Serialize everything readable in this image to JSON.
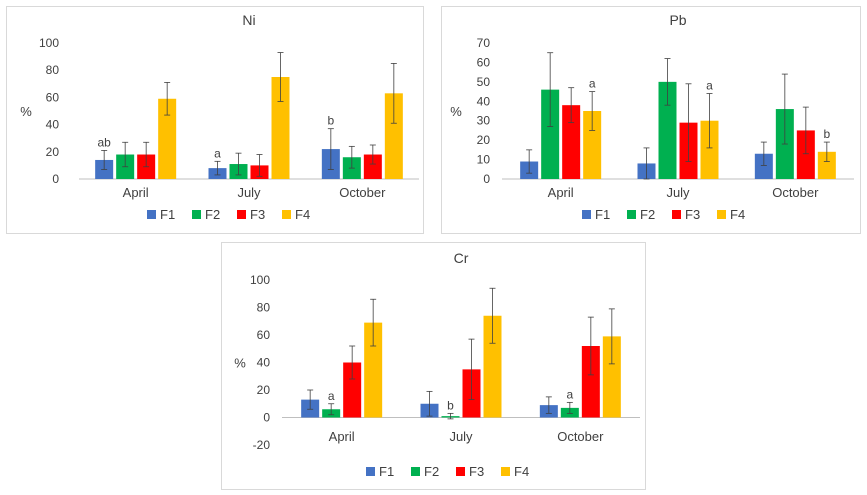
{
  "colors": {
    "F1": "#4472c4",
    "F2": "#00b050",
    "F3": "#ff0000",
    "F4": "#ffc000",
    "axis": "#bfbfbf",
    "text": "#404040",
    "error": "#404040"
  },
  "chart_data": [
    {
      "type": "bar",
      "title": "Ni",
      "xlabel": "",
      "ylabel": "%",
      "ylim": [
        0,
        100
      ],
      "yticks": [
        0,
        20,
        40,
        60,
        80,
        100
      ],
      "categories": [
        "April",
        "July",
        "October"
      ],
      "series": [
        {
          "name": "F1",
          "values": [
            14,
            8,
            22
          ],
          "errors": [
            7,
            5,
            15
          ],
          "labels": [
            "ab",
            "a",
            "b"
          ]
        },
        {
          "name": "F2",
          "values": [
            18,
            11,
            16
          ],
          "errors": [
            9,
            8,
            8
          ],
          "labels": [
            "",
            "",
            ""
          ]
        },
        {
          "name": "F3",
          "values": [
            18,
            10,
            18
          ],
          "errors": [
            9,
            8,
            7
          ],
          "labels": [
            "",
            "",
            ""
          ]
        },
        {
          "name": "F4",
          "values": [
            59,
            75,
            63
          ],
          "errors": [
            12,
            18,
            22
          ],
          "labels": [
            "",
            "",
            ""
          ]
        }
      ],
      "legend": "bottom"
    },
    {
      "type": "bar",
      "title": "Pb",
      "xlabel": "",
      "ylabel": "%",
      "ylim": [
        0,
        70
      ],
      "yticks": [
        0,
        10,
        20,
        30,
        40,
        50,
        60,
        70
      ],
      "categories": [
        "April",
        "July",
        "October"
      ],
      "series": [
        {
          "name": "F1",
          "values": [
            9,
            8,
            13
          ],
          "errors": [
            6,
            8,
            6
          ],
          "labels": [
            "",
            "",
            ""
          ]
        },
        {
          "name": "F2",
          "values": [
            46,
            50,
            36
          ],
          "errors": [
            19,
            12,
            18
          ],
          "labels": [
            "",
            "",
            ""
          ]
        },
        {
          "name": "F3",
          "values": [
            38,
            29,
            25
          ],
          "errors": [
            9,
            20,
            12
          ],
          "labels": [
            "",
            "",
            ""
          ]
        },
        {
          "name": "F4",
          "values": [
            35,
            30,
            14
          ],
          "errors": [
            10,
            14,
            5
          ],
          "labels": [
            "a",
            "a",
            "b"
          ]
        }
      ],
      "legend": "bottom"
    },
    {
      "type": "bar",
      "title": "Cr",
      "xlabel": "",
      "ylabel": "%",
      "ylim": [
        -20,
        100
      ],
      "yticks": [
        -20,
        0,
        20,
        40,
        60,
        80,
        100
      ],
      "categories": [
        "April",
        "July",
        "October"
      ],
      "series": [
        {
          "name": "F1",
          "values": [
            13,
            10,
            9
          ],
          "errors": [
            7,
            9,
            6
          ],
          "labels": [
            "",
            "",
            ""
          ]
        },
        {
          "name": "F2",
          "values": [
            6,
            1,
            7
          ],
          "errors": [
            4,
            2,
            4
          ],
          "labels": [
            "a",
            "b",
            "a"
          ]
        },
        {
          "name": "F3",
          "values": [
            40,
            35,
            52
          ],
          "errors": [
            12,
            22,
            21
          ],
          "labels": [
            "",
            "",
            ""
          ]
        },
        {
          "name": "F4",
          "values": [
            69,
            74,
            59
          ],
          "errors": [
            17,
            20,
            20
          ],
          "labels": [
            "",
            "",
            ""
          ]
        }
      ],
      "legend": "bottom"
    }
  ]
}
